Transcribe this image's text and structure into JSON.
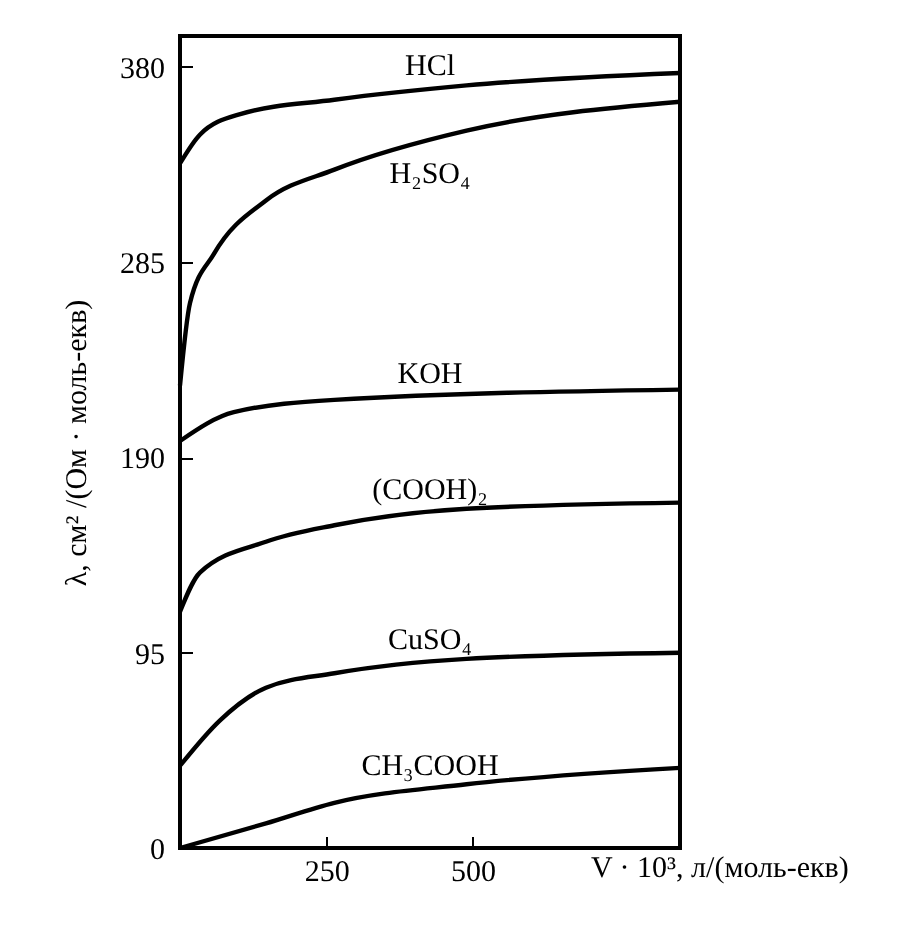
{
  "chart_data": {
    "type": "line",
    "xlabel": "V · 10³, л/(моль-екв)",
    "ylabel": "λ, см² /(Ом · моль-екв)",
    "xlim": [
      0,
      855
    ],
    "ylim": [
      0,
      395
    ],
    "xticks": [
      250,
      500
    ],
    "yticks": [
      0,
      95,
      190,
      285,
      380
    ],
    "grid": false,
    "marker": "none",
    "line_style": "solid",
    "series": [
      {
        "name": "HCl",
        "color": "#000000",
        "x": [
          0,
          34,
          103,
          264,
          490,
          855
        ],
        "values": [
          333,
          347,
          357,
          364,
          371,
          377
        ]
      },
      {
        "name": "H₂SO₄",
        "color": "#000000",
        "x": [
          0,
          17,
          58,
          147,
          264,
          490,
          855
        ],
        "values": [
          225,
          265,
          289,
          315,
          330,
          349,
          363
        ]
      },
      {
        "name": "KOH",
        "color": "#000000",
        "x": [
          0,
          92,
          264,
          855
        ],
        "values": [
          198,
          212,
          218,
          223
        ]
      },
      {
        "name": "(COOH)₂",
        "color": "#000000",
        "x": [
          0,
          34,
          147,
          264,
          490,
          855
        ],
        "values": [
          115,
          134,
          149,
          157,
          165,
          168
        ]
      },
      {
        "name": "CuSO₄",
        "color": "#000000",
        "x": [
          0,
          68,
          147,
          264,
          490,
          855
        ],
        "values": [
          40,
          62,
          78,
          85,
          92,
          95
        ]
      },
      {
        "name": "CH₃COOH",
        "color": "#000000",
        "x": [
          0,
          147,
          264,
          490,
          855
        ],
        "values": [
          0,
          12,
          22,
          31,
          39
        ]
      }
    ]
  }
}
